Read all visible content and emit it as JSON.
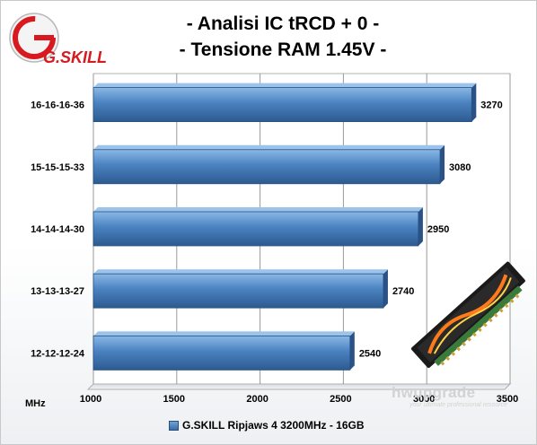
{
  "title_line1": "- Analisi IC  tRCD + 0 -",
  "title_line2": "- Tensione RAM 1.45V -",
  "logo_text": "G.SKILL",
  "watermark": {
    "main": "hwupgrade",
    "sub": "your ultimate professional resource"
  },
  "colors": {
    "bar_light": "#6fa2d8",
    "bar_mid": "#4a82c0",
    "bar_dark": "#2d5a90",
    "logo_red": "#d71920"
  },
  "chart_data": {
    "type": "bar",
    "orientation": "horizontal",
    "categories": [
      "16-16-16-36",
      "15-15-15-33",
      "14-14-14-30",
      "13-13-13-27",
      "12-12-12-24"
    ],
    "series": [
      {
        "name": "G.SKILL Ripjaws 4 3200MHz - 16GB",
        "values": [
          3270,
          3080,
          2950,
          2740,
          2540
        ]
      }
    ],
    "value_labels": [
      "3270",
      "3080",
      "2950",
      "2740",
      "2540"
    ],
    "xlim": [
      1000,
      3500
    ],
    "x_ticks": [
      "1000",
      "1500",
      "2000",
      "2500",
      "3000",
      "3500"
    ],
    "xlabel": "MHz",
    "legend_position": "bottom",
    "grid": true
  }
}
